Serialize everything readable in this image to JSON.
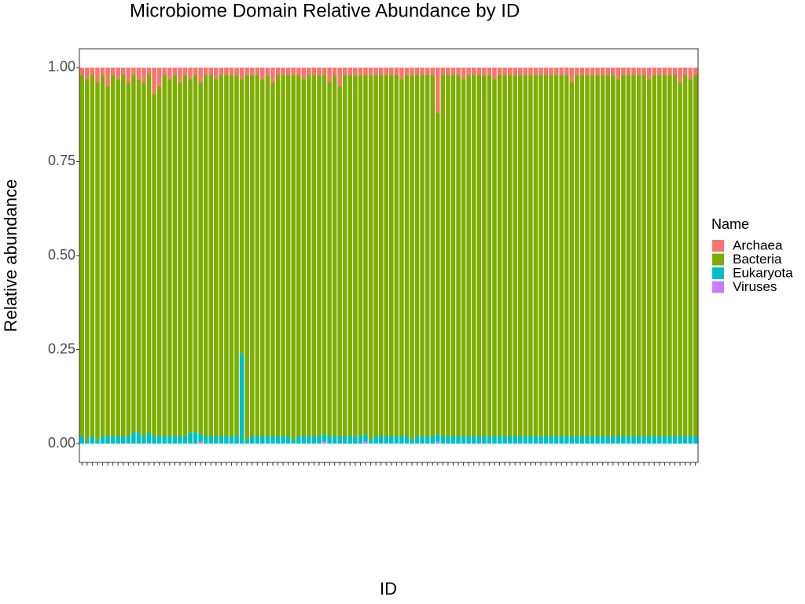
{
  "chart_data": {
    "type": "stacked_bar",
    "title": "Microbiome Domain Relative Abundance by ID",
    "x_label": "ID",
    "y_label": "Relative abundance",
    "legend_title": "Name",
    "categories": [
      null,
      null,
      null,
      null,
      null,
      null,
      null,
      null,
      null,
      null,
      null,
      null,
      null,
      null,
      null,
      null,
      null,
      null,
      null,
      null,
      null,
      null,
      null,
      null,
      null,
      null,
      null,
      null,
      null,
      null,
      null,
      null,
      null,
      null,
      null,
      null,
      null,
      null,
      null,
      null,
      null,
      null,
      null,
      null,
      null,
      null,
      null,
      null,
      null,
      null,
      null,
      null,
      null,
      null,
      null,
      null,
      null,
      null,
      null,
      null,
      null,
      null,
      null,
      null,
      null,
      null,
      null,
      null,
      null,
      null,
      null,
      null,
      null,
      null,
      null,
      null,
      null,
      null,
      null,
      null,
      null,
      null,
      null,
      null,
      null,
      null,
      null,
      null,
      null,
      null,
      null,
      null,
      null,
      null,
      null,
      null,
      null,
      null,
      null,
      null,
      null,
      null,
      null,
      null,
      null,
      null,
      null,
      null,
      null,
      null,
      null,
      null,
      null,
      null,
      null,
      null,
      null,
      null,
      null,
      null
    ],
    "series": [
      {
        "name": "Archaea",
        "color": "#F8766D",
        "values": [
          0.02,
          0.03,
          0.02,
          0.04,
          0.02,
          0.05,
          0.02,
          0.03,
          0.02,
          0.04,
          0.02,
          0.03,
          0.04,
          0.02,
          0.07,
          0.05,
          0.02,
          0.03,
          0.02,
          0.04,
          0.02,
          0.03,
          0.02,
          0.04,
          0.02,
          0.02,
          0.03,
          0.02,
          0.02,
          0.02,
          0.02,
          0.03,
          0.02,
          0.02,
          0.02,
          0.03,
          0.02,
          0.04,
          0.02,
          0.02,
          0.02,
          0.02,
          0.02,
          0.03,
          0.02,
          0.02,
          0.02,
          0.02,
          0.04,
          0.02,
          0.05,
          0.02,
          0.02,
          0.02,
          0.02,
          0.02,
          0.02,
          0.02,
          0.02,
          0.02,
          0.02,
          0.02,
          0.03,
          0.02,
          0.02,
          0.02,
          0.02,
          0.02,
          0.02,
          0.12,
          0.02,
          0.02,
          0.02,
          0.02,
          0.03,
          0.02,
          0.02,
          0.02,
          0.02,
          0.02,
          0.03,
          0.02,
          0.02,
          0.02,
          0.02,
          0.02,
          0.02,
          0.02,
          0.02,
          0.02,
          0.02,
          0.02,
          0.02,
          0.02,
          0.02,
          0.04,
          0.02,
          0.02,
          0.02,
          0.02,
          0.02,
          0.02,
          0.02,
          0.02,
          0.03,
          0.02,
          0.02,
          0.02,
          0.02,
          0.02,
          0.03,
          0.02,
          0.02,
          0.02,
          0.02,
          0.02,
          0.04,
          0.02,
          0.03,
          0.02
        ]
      },
      {
        "name": "Bacteria",
        "color": "#7CAE00",
        "values": [
          0.96,
          0.96,
          0.96,
          0.95,
          0.96,
          0.93,
          0.96,
          0.95,
          0.96,
          0.94,
          0.95,
          0.94,
          0.94,
          0.95,
          0.91,
          0.93,
          0.96,
          0.95,
          0.96,
          0.94,
          0.96,
          0.94,
          0.95,
          0.935,
          0.96,
          0.96,
          0.95,
          0.96,
          0.96,
          0.96,
          0.96,
          0.73,
          0.97,
          0.96,
          0.96,
          0.95,
          0.96,
          0.94,
          0.96,
          0.96,
          0.96,
          0.97,
          0.96,
          0.95,
          0.96,
          0.96,
          0.96,
          0.955,
          0.94,
          0.96,
          0.93,
          0.96,
          0.96,
          0.96,
          0.96,
          0.955,
          0.97,
          0.96,
          0.96,
          0.96,
          0.96,
          0.96,
          0.95,
          0.96,
          0.97,
          0.96,
          0.96,
          0.96,
          0.96,
          0.855,
          0.96,
          0.96,
          0.96,
          0.96,
          0.95,
          0.96,
          0.96,
          0.96,
          0.96,
          0.96,
          0.95,
          0.96,
          0.96,
          0.96,
          0.96,
          0.96,
          0.96,
          0.96,
          0.96,
          0.96,
          0.96,
          0.96,
          0.96,
          0.96,
          0.96,
          0.94,
          0.96,
          0.96,
          0.96,
          0.96,
          0.96,
          0.96,
          0.96,
          0.96,
          0.95,
          0.96,
          0.96,
          0.96,
          0.96,
          0.96,
          0.95,
          0.96,
          0.96,
          0.96,
          0.96,
          0.96,
          0.94,
          0.96,
          0.95,
          0.96
        ]
      },
      {
        "name": "Eukaryota",
        "color": "#00BFC4",
        "values": [
          0.02,
          0.01,
          0.02,
          0.01,
          0.02,
          0.02,
          0.02,
          0.02,
          0.02,
          0.02,
          0.03,
          0.03,
          0.02,
          0.03,
          0.02,
          0.02,
          0.02,
          0.02,
          0.02,
          0.02,
          0.02,
          0.03,
          0.03,
          0.02,
          0.02,
          0.02,
          0.02,
          0.02,
          0.02,
          0.02,
          0.02,
          0.24,
          0.01,
          0.02,
          0.02,
          0.02,
          0.02,
          0.02,
          0.02,
          0.02,
          0.02,
          0.01,
          0.02,
          0.02,
          0.02,
          0.02,
          0.02,
          0.02,
          0.02,
          0.02,
          0.02,
          0.02,
          0.02,
          0.02,
          0.02,
          0.02,
          0.01,
          0.02,
          0.02,
          0.02,
          0.02,
          0.02,
          0.02,
          0.02,
          0.01,
          0.02,
          0.02,
          0.02,
          0.02,
          0.02,
          0.02,
          0.02,
          0.02,
          0.02,
          0.02,
          0.02,
          0.02,
          0.02,
          0.02,
          0.02,
          0.02,
          0.02,
          0.02,
          0.02,
          0.02,
          0.02,
          0.02,
          0.02,
          0.02,
          0.02,
          0.02,
          0.02,
          0.02,
          0.02,
          0.02,
          0.02,
          0.02,
          0.02,
          0.02,
          0.02,
          0.02,
          0.02,
          0.02,
          0.02,
          0.02,
          0.02,
          0.02,
          0.02,
          0.02,
          0.02,
          0.02,
          0.02,
          0.02,
          0.02,
          0.02,
          0.02,
          0.02,
          0.02,
          0.02,
          0.02
        ]
      },
      {
        "name": "Viruses",
        "color": "#C77CFF",
        "values": [
          0,
          0,
          0,
          0,
          0,
          0,
          0,
          0,
          0,
          0,
          0,
          0,
          0,
          0,
          0,
          0,
          0,
          0,
          0,
          0,
          0,
          0,
          0,
          0.005,
          0,
          0,
          0,
          0,
          0,
          0,
          0,
          0,
          0,
          0,
          0,
          0,
          0,
          0,
          0,
          0,
          0,
          0,
          0,
          0,
          0,
          0,
          0,
          0.005,
          0,
          0,
          0,
          0,
          0,
          0,
          0,
          0.005,
          0,
          0,
          0,
          0,
          0,
          0,
          0,
          0,
          0,
          0,
          0,
          0,
          0,
          0.005,
          0,
          0,
          0,
          0,
          0,
          0,
          0,
          0,
          0,
          0,
          0,
          0,
          0,
          0,
          0,
          0,
          0,
          0,
          0,
          0,
          0,
          0,
          0,
          0,
          0,
          0,
          0,
          0,
          0,
          0,
          0,
          0,
          0,
          0,
          0,
          0,
          0,
          0,
          0,
          0,
          0,
          0,
          0,
          0,
          0,
          0,
          0,
          0,
          0,
          0
        ]
      }
    ],
    "ylim": [
      -0.05,
      1.05
    ],
    "yticks": [
      {
        "value": 0,
        "label": "0.00"
      },
      {
        "value": 0.25,
        "label": "0.25"
      },
      {
        "value": 0.5,
        "label": "0.50"
      },
      {
        "value": 0.75,
        "label": "0.75"
      },
      {
        "value": 1,
        "label": "1.00"
      }
    ],
    "grid": false
  }
}
